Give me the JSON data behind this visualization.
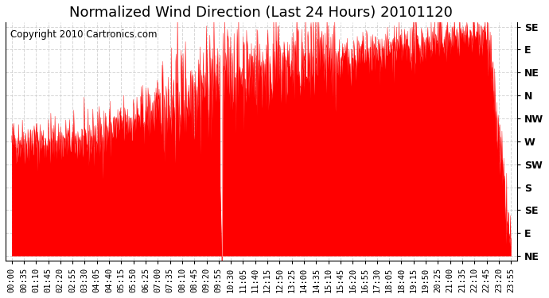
{
  "title": "Normalized Wind Direction (Last 24 Hours) 20101120",
  "copyright": "Copyright 2010 Cartronics.com",
  "background_color": "#ffffff",
  "line_color": "#ff0000",
  "fill_color": "#ff0000",
  "grid_color": "#cccccc",
  "ytick_labels": [
    "NE",
    "E",
    "SE",
    "S",
    "SW",
    "W",
    "NW",
    "N",
    "NE",
    "E",
    "SE"
  ],
  "ytick_values": [
    0,
    1,
    2,
    3,
    4,
    5,
    6,
    7,
    8,
    9,
    10
  ],
  "ylim": [
    -0.2,
    10.2
  ],
  "xtick_labels": [
    "00:00",
    "00:35",
    "01:10",
    "01:45",
    "02:20",
    "02:55",
    "03:30",
    "04:05",
    "04:40",
    "05:15",
    "05:50",
    "06:25",
    "07:00",
    "07:35",
    "08:10",
    "08:45",
    "09:20",
    "09:55",
    "10:30",
    "11:05",
    "11:40",
    "12:15",
    "12:50",
    "13:25",
    "14:00",
    "14:35",
    "15:10",
    "15:45",
    "16:20",
    "16:55",
    "17:30",
    "18:05",
    "18:40",
    "19:15",
    "19:50",
    "20:25",
    "21:00",
    "21:35",
    "22:10",
    "22:45",
    "23:20",
    "23:55"
  ],
  "title_fontsize": 13,
  "copyright_fontsize": 8.5,
  "tick_fontsize": 7.5,
  "ylabel_fontsize": 9
}
